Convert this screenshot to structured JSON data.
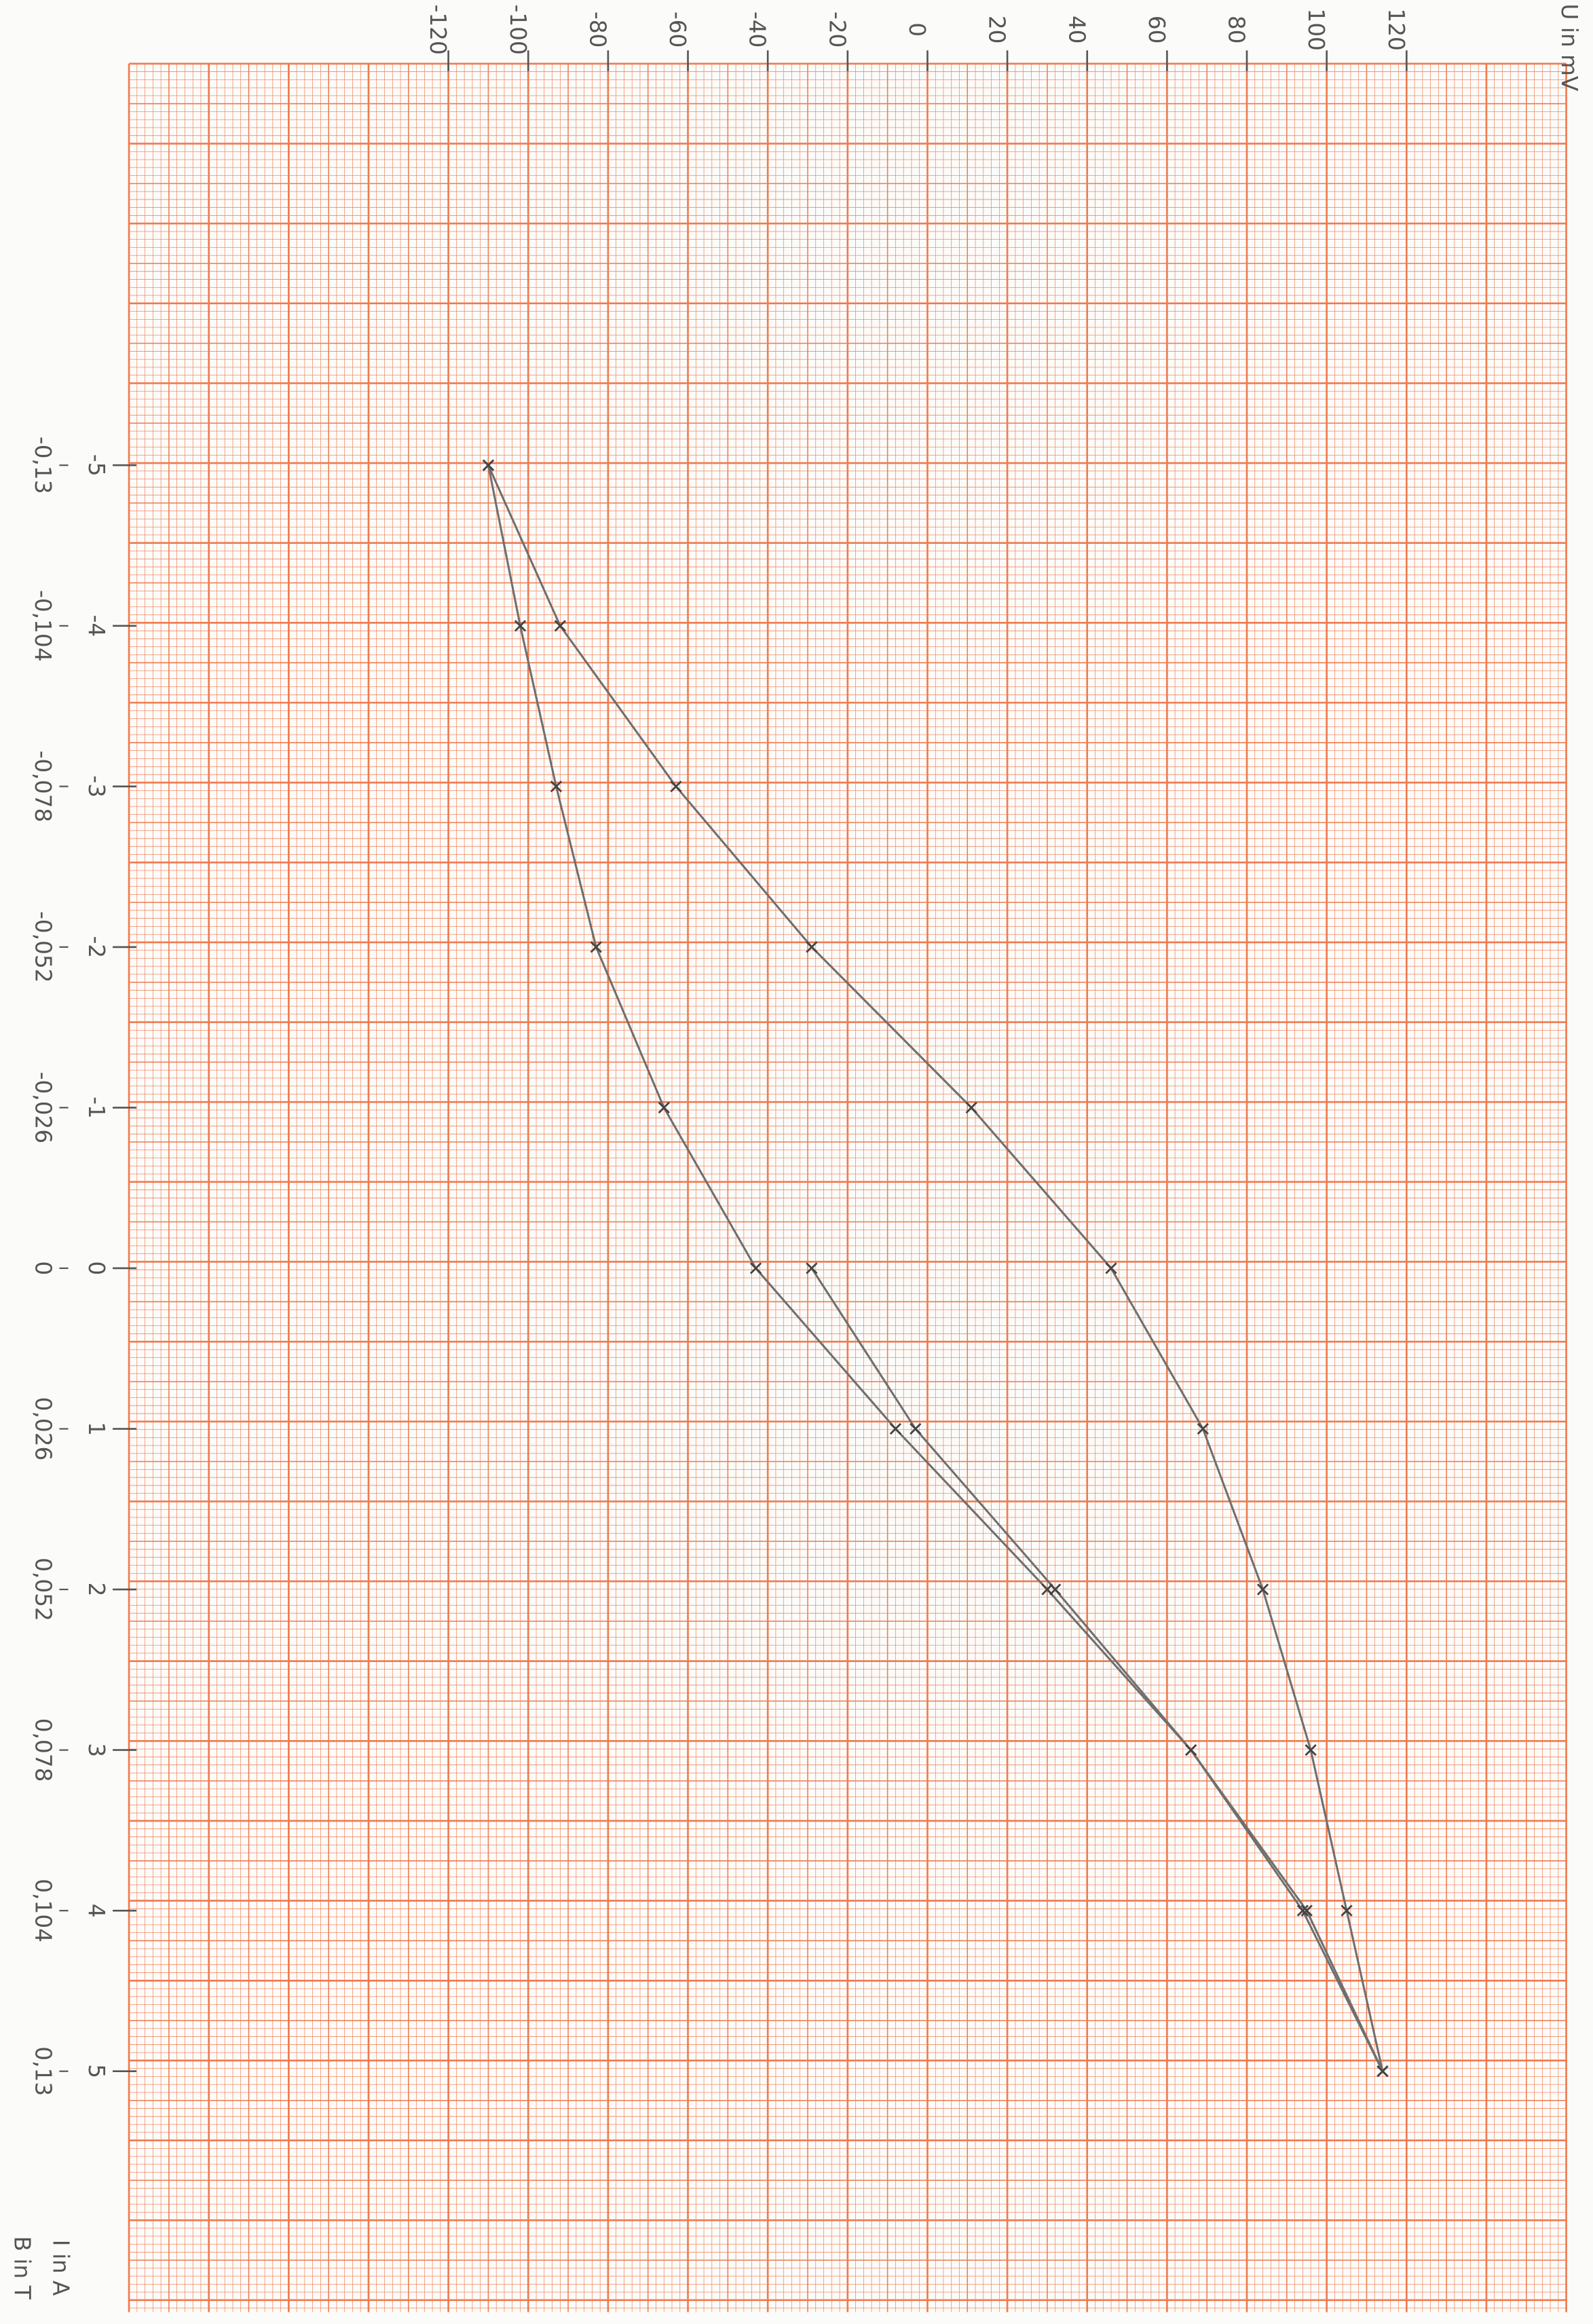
{
  "chart_data": {
    "type": "line",
    "x_label": "U in mV",
    "y_label": "I in A",
    "y2_label": "B in T",
    "xlim": [
      -200,
      160
    ],
    "xticks": [
      -120,
      -100,
      -80,
      -60,
      -40,
      -20,
      0,
      20,
      40,
      60,
      80,
      100,
      120
    ],
    "ylim": [
      -7.5,
      6.5
    ],
    "yticks": [
      -5,
      -4,
      -3,
      -2,
      -1,
      0,
      1,
      2,
      3,
      4,
      5
    ],
    "y2lim": [
      -0.195,
      0.169
    ],
    "y2ticks": [
      {
        "value": -0.13,
        "label": "-0,13"
      },
      {
        "value": -0.104,
        "label": "-0,104"
      },
      {
        "value": -0.078,
        "label": "-0,078"
      },
      {
        "value": -0.052,
        "label": "-0,052"
      },
      {
        "value": -0.026,
        "label": "-0,026"
      },
      0,
      {
        "value": 0.026,
        "label": "0,026"
      },
      {
        "value": 0.052,
        "label": "0,052"
      },
      {
        "value": 0.078,
        "label": "0,078"
      },
      {
        "value": 0.104,
        "label": "0,104"
      },
      {
        "value": 0.13,
        "label": "0,13"
      }
    ],
    "series": [
      {
        "color": "#6f6f6f",
        "x": [
          -110,
          -102,
          -93,
          -83,
          -66,
          -43,
          -8,
          30,
          66,
          94,
          114
        ],
        "values": [
          -5,
          -4,
          -3,
          -2,
          -1,
          0,
          1,
          2,
          3,
          4,
          5
        ]
      },
      {
        "color": "#6f6f6f",
        "x": [
          114,
          105,
          96,
          84,
          69,
          46,
          11,
          -29,
          -63,
          -92,
          -110
        ],
        "values": [
          5,
          4,
          3,
          2,
          1,
          0,
          -1,
          -2,
          -3,
          -4,
          -5
        ]
      },
      {
        "color": "#6f6f6f",
        "x": [
          -29,
          -3,
          32,
          66,
          95,
          114
        ],
        "values": [
          0,
          1,
          2,
          3,
          4,
          5
        ]
      }
    ]
  }
}
